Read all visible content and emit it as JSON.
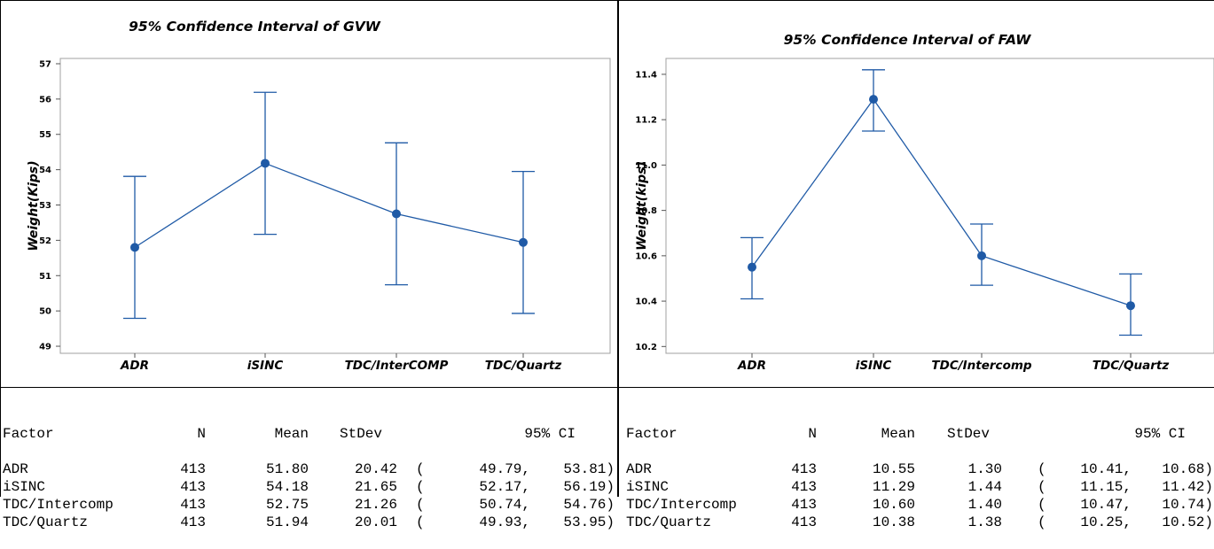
{
  "colors": {
    "series": "#1f5aa6",
    "axis": "#a0a0a0"
  },
  "chart_data": [
    {
      "type": "scatter",
      "title": "95% Confidence Interval of GVW",
      "ylabel": "Weight(Kips)",
      "xlabel": "",
      "categories": [
        "ADR",
        "iSINC",
        "TDC/InterCOMP",
        "TDC/Quartz"
      ],
      "series": [
        {
          "values": [
            51.8,
            54.18,
            52.75,
            51.94
          ],
          "lower": [
            49.79,
            52.17,
            50.74,
            49.93
          ],
          "upper": [
            53.81,
            56.19,
            54.76,
            53.95
          ]
        }
      ],
      "ylim": [
        48.8,
        57.15
      ],
      "yticks": [
        "49",
        "50",
        "51",
        "52",
        "53",
        "54",
        "55",
        "56",
        "57"
      ],
      "grid": false
    },
    {
      "type": "scatter",
      "title": "95% Confidence Interval of FAW",
      "ylabel": "Weight(kips)",
      "xlabel": "",
      "categories": [
        "ADR",
        "iSINC",
        "TDC/Intercomp",
        "TDC/Quartz"
      ],
      "series": [
        {
          "values": [
            10.55,
            11.29,
            10.6,
            10.38
          ],
          "lower": [
            10.41,
            11.15,
            10.47,
            10.25
          ],
          "upper": [
            10.68,
            11.42,
            10.74,
            10.52
          ]
        }
      ],
      "ylim": [
        10.17,
        11.47
      ],
      "yticks": [
        "10.2",
        "10.4",
        "10.6",
        "10.8",
        "11.0",
        "11.2",
        "11.4"
      ],
      "grid": false
    }
  ],
  "tables": [
    {
      "headers": [
        "Factor",
        "N",
        "Mean",
        "StDev",
        "95% CI"
      ],
      "rows": [
        [
          "ADR",
          "413",
          "51.80",
          "20.42",
          "(",
          "49.79,",
          "53.81)"
        ],
        [
          "iSINC",
          "413",
          "54.18",
          "21.65",
          "(",
          "52.17,",
          "56.19)"
        ],
        [
          "TDC/Intercomp",
          "413",
          "52.75",
          "21.26",
          "(",
          "50.74,",
          "54.76)"
        ],
        [
          "TDC/Quartz",
          "413",
          "51.94",
          "20.01",
          "(",
          "49.93,",
          "53.95)"
        ]
      ]
    },
    {
      "headers": [
        "Factor",
        "N",
        "Mean",
        "StDev",
        "95% CI"
      ],
      "rows": [
        [
          "ADR",
          "413",
          "10.55",
          "1.30",
          "(",
          "10.41,",
          "10.68)"
        ],
        [
          "iSINC",
          "413",
          "11.29",
          "1.44",
          "(",
          "11.15,",
          "11.42)"
        ],
        [
          "TDC/Intercomp",
          "413",
          "10.60",
          "1.40",
          "(",
          "10.47,",
          "10.74)"
        ],
        [
          "TDC/Quartz",
          "413",
          "10.38",
          "1.38",
          "(",
          "10.25,",
          "10.52)"
        ]
      ]
    }
  ]
}
